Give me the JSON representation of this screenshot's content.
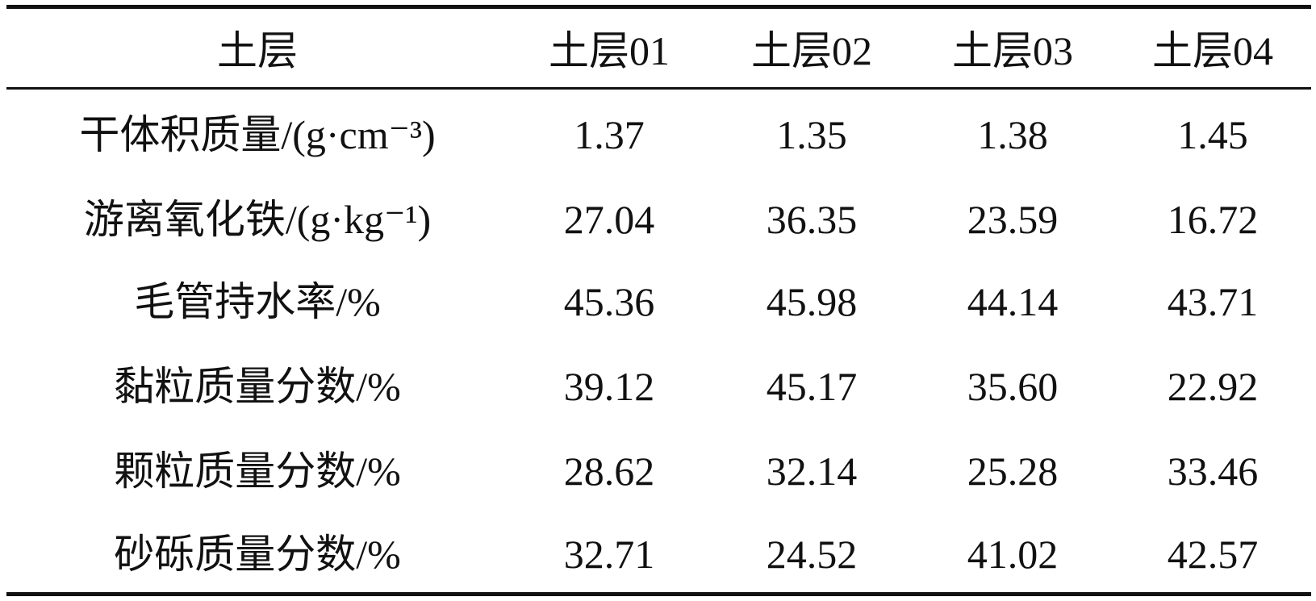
{
  "table": {
    "header": [
      "土层",
      "土层01",
      "土层02",
      "土层03",
      "土层04"
    ],
    "rows": [
      [
        "干体积质量/(g·cm⁻³)",
        "1.37",
        "1.35",
        "1.38",
        "1.45"
      ],
      [
        "游离氧化铁/(g·kg⁻¹)",
        "27.04",
        "36.35",
        "23.59",
        "16.72"
      ],
      [
        "毛管持水率/%",
        "45.36",
        "45.98",
        "44.14",
        "43.71"
      ],
      [
        "黏粒质量分数/%",
        "39.12",
        "45.17",
        "35.60",
        "22.92"
      ],
      [
        "颗粒质量分数/%",
        "28.62",
        "32.14",
        "25.28",
        "33.46"
      ],
      [
        "砂砾质量分数/%",
        "32.71",
        "24.52",
        "41.02",
        "42.57"
      ]
    ]
  }
}
